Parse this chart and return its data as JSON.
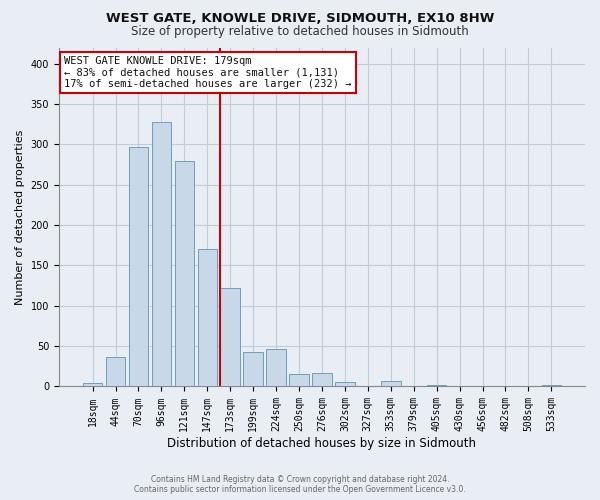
{
  "title": "WEST GATE, KNOWLE DRIVE, SIDMOUTH, EX10 8HW",
  "subtitle": "Size of property relative to detached houses in Sidmouth",
  "xlabel": "Distribution of detached houses by size in Sidmouth",
  "ylabel": "Number of detached properties",
  "bar_labels": [
    "18sqm",
    "44sqm",
    "70sqm",
    "96sqm",
    "121sqm",
    "147sqm",
    "173sqm",
    "199sqm",
    "224sqm",
    "250sqm",
    "276sqm",
    "302sqm",
    "327sqm",
    "353sqm",
    "379sqm",
    "405sqm",
    "430sqm",
    "456sqm",
    "482sqm",
    "508sqm",
    "533sqm"
  ],
  "bar_heights": [
    4,
    37,
    297,
    328,
    279,
    170,
    122,
    43,
    46,
    16,
    17,
    5,
    0,
    7,
    0,
    2,
    0,
    0,
    0,
    0,
    2
  ],
  "bar_color": "#c8d8e8",
  "bar_edgecolor": "#6a9ec0",
  "highlight_color": "#cc0000",
  "vline_index": 6,
  "annotation_title": "WEST GATE KNOWLE DRIVE: 179sqm",
  "annotation_line1": "← 83% of detached houses are smaller (1,131)",
  "annotation_line2": "17% of semi-detached houses are larger (232) →",
  "annotation_box_facecolor": "#ffffff",
  "annotation_box_edgecolor": "#cc0000",
  "ylim": [
    0,
    420
  ],
  "footer1": "Contains HM Land Registry data © Crown copyright and database right 2024.",
  "footer2": "Contains public sector information licensed under the Open Government Licence v3.0.",
  "bg_color": "#e8eef4",
  "plot_bg_color": "#e8eef4",
  "grid_color": "#c0ccd8",
  "title_fontsize": 9.5,
  "subtitle_fontsize": 8.5,
  "ylabel_fontsize": 8,
  "xlabel_fontsize": 8.5,
  "tick_fontsize": 7,
  "annotation_fontsize": 7.5,
  "footer_fontsize": 5.5
}
